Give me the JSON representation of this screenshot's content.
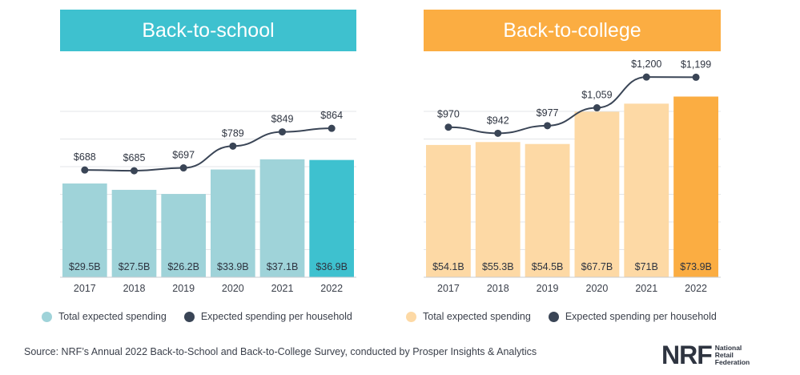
{
  "headers": {
    "school": "Back-to-school",
    "college": "Back-to-college"
  },
  "chart_data": [
    {
      "type": "bar",
      "title": "Back-to-school",
      "categories": [
        "2017",
        "2018",
        "2019",
        "2020",
        "2021",
        "2022"
      ],
      "series": [
        {
          "name": "Total expected spending",
          "type": "bar",
          "values": [
            29.5,
            27.5,
            26.2,
            33.9,
            37.1,
            36.9
          ],
          "labels": [
            "$29.5B",
            "$27.5B",
            "$26.2B",
            "$33.9B",
            "$37.1B",
            "$36.9B"
          ]
        },
        {
          "name": "Expected spending per household",
          "type": "line",
          "values": [
            688,
            685,
            697,
            789,
            849,
            864
          ],
          "labels": [
            "$688",
            "$685",
            "$697",
            "$789",
            "$849",
            "$864"
          ]
        }
      ],
      "bar_color": "#9fd3d9",
      "bar_highlight_color": "#3ec1cf",
      "line_color": "#3a4556",
      "grid": true,
      "legend_position": "bottom"
    },
    {
      "type": "bar",
      "title": "Back-to-college",
      "categories": [
        "2017",
        "2018",
        "2019",
        "2020",
        "2021",
        "2022"
      ],
      "series": [
        {
          "name": "Total expected spending",
          "type": "bar",
          "values": [
            54.1,
            55.3,
            54.5,
            67.7,
            71,
            73.9
          ],
          "labels": [
            "$54.1B",
            "$55.3B",
            "$54.5B",
            "$67.7B",
            "$71B",
            "$73.9B"
          ]
        },
        {
          "name": "Expected spending per household",
          "type": "line",
          "values": [
            970,
            942,
            977,
            1059,
            1200,
            1199
          ],
          "labels": [
            "$970",
            "$942",
            "$977",
            "$1,059",
            "$1,200",
            "$1,199"
          ]
        }
      ],
      "bar_color": "#fdd9a5",
      "bar_highlight_color": "#fbad42",
      "line_color": "#3a4556",
      "grid": true,
      "legend_position": "bottom"
    }
  ],
  "legend": {
    "total_label": "Total expected spending",
    "household_label": "Expected spending per household"
  },
  "source": "Source: NRF’s Annual 2022 Back-to-School and Back-to-College Survey, conducted by Prosper Insights & Analytics",
  "logo": {
    "mark": "NRF",
    "line1": "National",
    "line2": "Retail",
    "line3": "Federation"
  }
}
